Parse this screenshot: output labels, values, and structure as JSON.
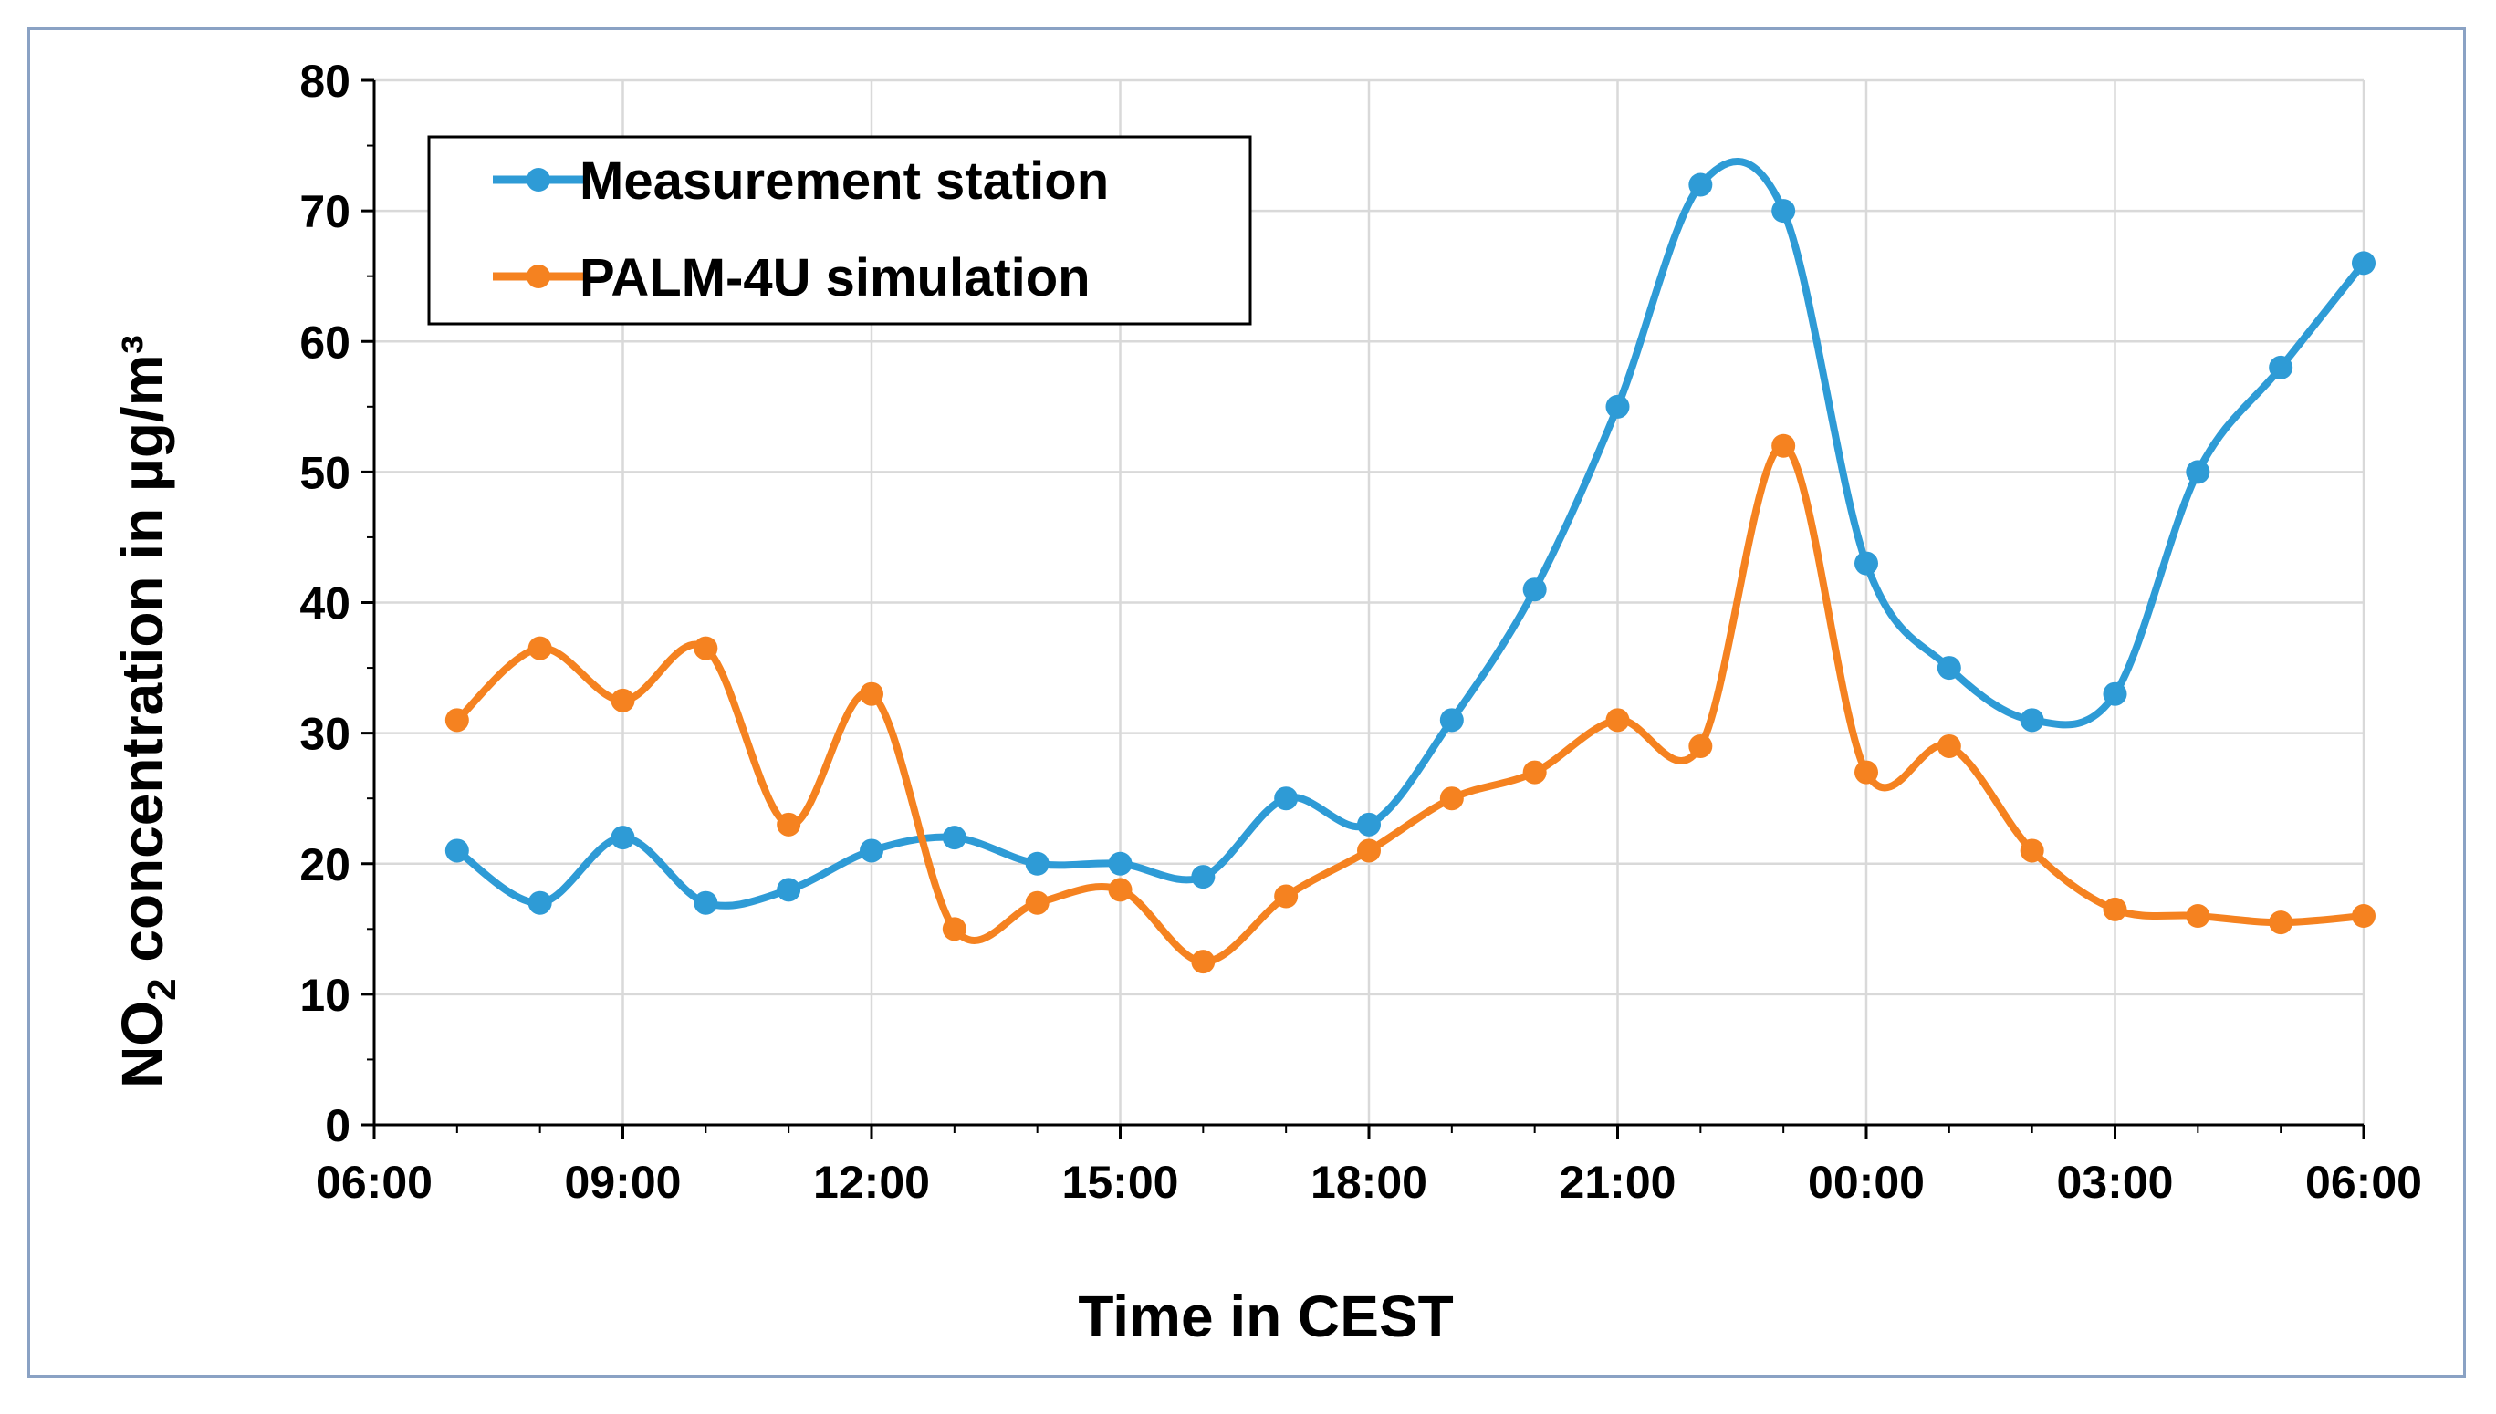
{
  "chart_data": {
    "type": "line",
    "xlabel": "Time in CEST",
    "ylabel_main": "NO",
    "ylabel_sub": "2",
    "ylabel_rest": " concentration in µg/m³",
    "ylim": [
      0,
      80
    ],
    "yticks": [
      0,
      10,
      20,
      30,
      40,
      50,
      60,
      70,
      80
    ],
    "x_ticks": [
      "06:00",
      "09:00",
      "12:00",
      "15:00",
      "18:00",
      "21:00",
      "00:00",
      "03:00",
      "06:00"
    ],
    "x_unit": "hours after 06:00",
    "grid": true,
    "legend_position": "top-left",
    "series": [
      {
        "name": "Measurement station",
        "color": "#2e9bd6",
        "x": [
          1,
          2,
          3,
          4,
          5,
          6,
          7,
          8,
          9,
          10,
          11,
          12,
          13,
          14,
          15,
          16,
          17,
          18,
          19,
          20,
          21,
          22,
          23,
          24
        ],
        "values": [
          21,
          17,
          22,
          17,
          18,
          21,
          22,
          20,
          20,
          19,
          25,
          23,
          31,
          41,
          55,
          72,
          70,
          43,
          35,
          31,
          33,
          50,
          58,
          66
        ]
      },
      {
        "name": "PALM-4U simulation",
        "color": "#f58220",
        "x": [
          1,
          2,
          3,
          4,
          5,
          6,
          7,
          8,
          9,
          10,
          11,
          12,
          13,
          14,
          15,
          16,
          17,
          18,
          19,
          20,
          21,
          22,
          23,
          24
        ],
        "values": [
          31,
          36.5,
          32.5,
          36.5,
          23,
          33,
          15,
          17,
          18,
          12.5,
          17.5,
          21,
          25,
          27,
          31,
          29,
          52,
          27,
          29,
          21,
          16.5,
          16,
          15.5,
          16
        ]
      }
    ]
  }
}
